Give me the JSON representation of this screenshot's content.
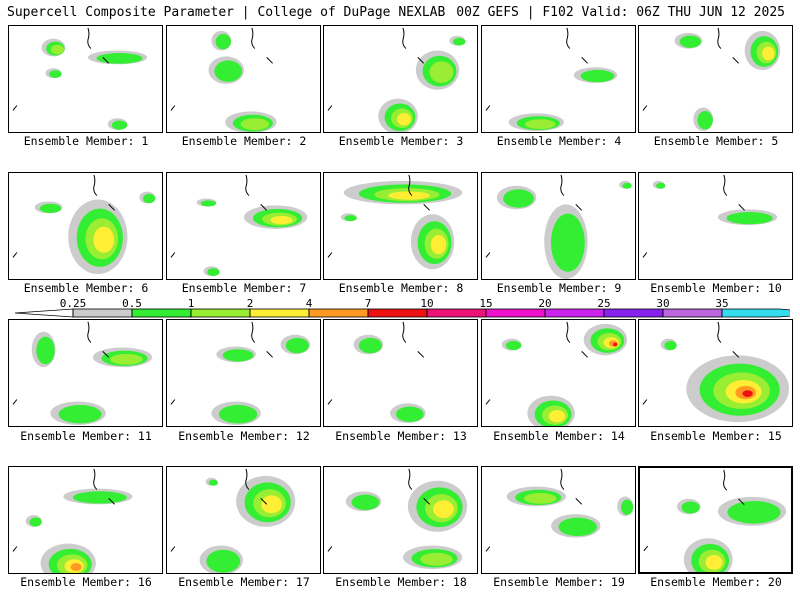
{
  "header": {
    "title": "Supercell Composite Parameter | College of DuPage NEXLAB",
    "run_info": "00Z GEFS | F102 Valid: 06Z THU JUN 12 2025"
  },
  "colorbar": {
    "labels": [
      "0.25",
      "0.5",
      "1",
      "2",
      "4",
      "7",
      "10",
      "15",
      "20",
      "25",
      "30",
      "35"
    ],
    "colors": [
      "#cccccc",
      "#33ee33",
      "#99ee33",
      "#ffee33",
      "#ff9922",
      "#ee1111",
      "#ee1177",
      "#ee11cc",
      "#cc22ee",
      "#8822ee",
      "#bb66dd",
      "#33ddee"
    ]
  },
  "members": [
    {
      "label": "Ensemble Member: 1"
    },
    {
      "label": "Ensemble Member: 2"
    },
    {
      "label": "Ensemble Member: 3"
    },
    {
      "label": "Ensemble Member: 4"
    },
    {
      "label": "Ensemble Member: 5"
    },
    {
      "label": "Ensemble Member: 6"
    },
    {
      "label": "Ensemble Member: 7"
    },
    {
      "label": "Ensemble Member: 8"
    },
    {
      "label": "Ensemble Member: 9"
    },
    {
      "label": "Ensemble Member: 10"
    },
    {
      "label": "Ensemble Member: 11"
    },
    {
      "label": "Ensemble Member: 12"
    },
    {
      "label": "Ensemble Member: 13"
    },
    {
      "label": "Ensemble Member: 14"
    },
    {
      "label": "Ensemble Member: 15"
    },
    {
      "label": "Ensemble Member: 16"
    },
    {
      "label": "Ensemble Member: 17"
    },
    {
      "label": "Ensemble Member: 18"
    },
    {
      "label": "Ensemble Member: 19"
    },
    {
      "label": "Ensemble Member: 20"
    }
  ]
}
